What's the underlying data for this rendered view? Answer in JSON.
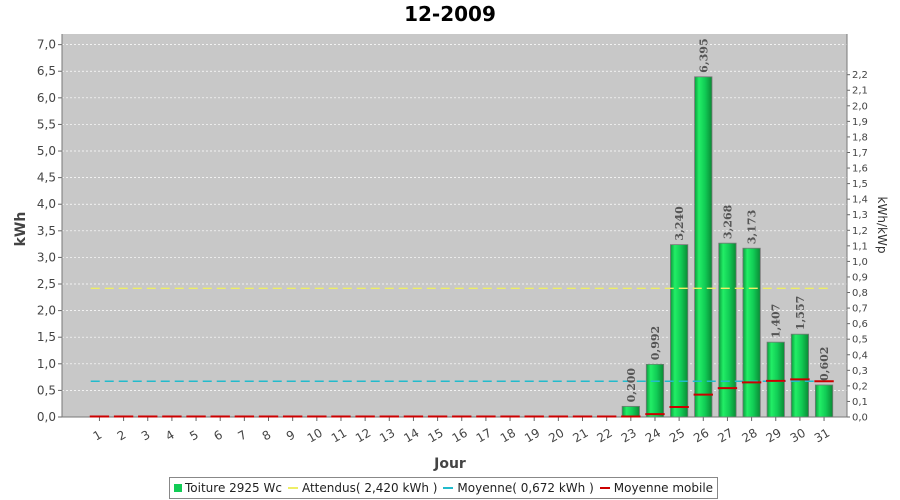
{
  "chart_data": {
    "type": "bar",
    "title": "12-2009",
    "xlabel": "Jour",
    "ylabel": "kWh",
    "y2label": "kWh/kWp",
    "categories": [
      "1",
      "2",
      "3",
      "4",
      "5",
      "6",
      "7",
      "8",
      "9",
      "10",
      "11",
      "12",
      "13",
      "14",
      "15",
      "16",
      "17",
      "18",
      "19",
      "20",
      "21",
      "22",
      "23",
      "24",
      "25",
      "26",
      "27",
      "28",
      "29",
      "30",
      "31"
    ],
    "series": [
      {
        "name": "Toiture 2925 Wc",
        "values": [
          0,
          0,
          0,
          0,
          0,
          0,
          0,
          0,
          0,
          0,
          0,
          0,
          0,
          0,
          0,
          0,
          0,
          0,
          0,
          0,
          0,
          0,
          0.2,
          0.992,
          3.24,
          6.395,
          3.268,
          3.173,
          1.407,
          1.557,
          0.602
        ],
        "labels": [
          "",
          "",
          "",
          "",
          "",
          "",
          "",
          "",
          "",
          "",
          "",
          "",
          "",
          "",
          "",
          "",
          "",
          "",
          "",
          "",
          "",
          "",
          "0,200",
          "0,992",
          "3,240",
          "6,395",
          "3,268",
          "3,173",
          "1,407",
          "1,557",
          "0,602"
        ]
      },
      {
        "name": "Attendus( 2,420 kWh )",
        "value": 2.42
      },
      {
        "name": "Moyenne( 0,672 kWh )",
        "value": 0.672
      },
      {
        "name": "Moyenne mobile",
        "values": [
          0,
          0,
          0,
          0,
          0,
          0,
          0,
          0,
          0,
          0,
          0,
          0,
          0,
          0,
          0,
          0,
          0,
          0,
          0,
          0,
          0,
          0,
          0.009,
          0.054,
          0.189,
          0.421,
          0.542,
          0.652,
          0.678,
          0.707,
          0.672
        ]
      }
    ],
    "ylim": [
      0,
      7.2
    ],
    "yticks": [
      "0,0",
      "0,5",
      "1,0",
      "1,5",
      "2,0",
      "2,5",
      "3,0",
      "3,5",
      "4,0",
      "4,5",
      "5,0",
      "5,5",
      "6,0",
      "6,5",
      "7,0"
    ],
    "y2lim": [
      0,
      2.4615
    ],
    "y2ticks": [
      "0,0",
      "0,1",
      "0,2",
      "0,3",
      "0,4",
      "0,5",
      "0,6",
      "0,7",
      "0,8",
      "0,9",
      "1,0",
      "1,1",
      "1,2",
      "1,3",
      "1,4",
      "1,5",
      "1,6",
      "1,7",
      "1,8",
      "1,9",
      "2,0",
      "2,1",
      "2,2"
    ],
    "grid": true,
    "legend_position": "bottom",
    "colors": {
      "bar": "#11cc55",
      "expected": "#eeee66",
      "average": "#22bbcc",
      "moving_average": "#cc0000",
      "plot_background": "#c8c8c8"
    }
  }
}
